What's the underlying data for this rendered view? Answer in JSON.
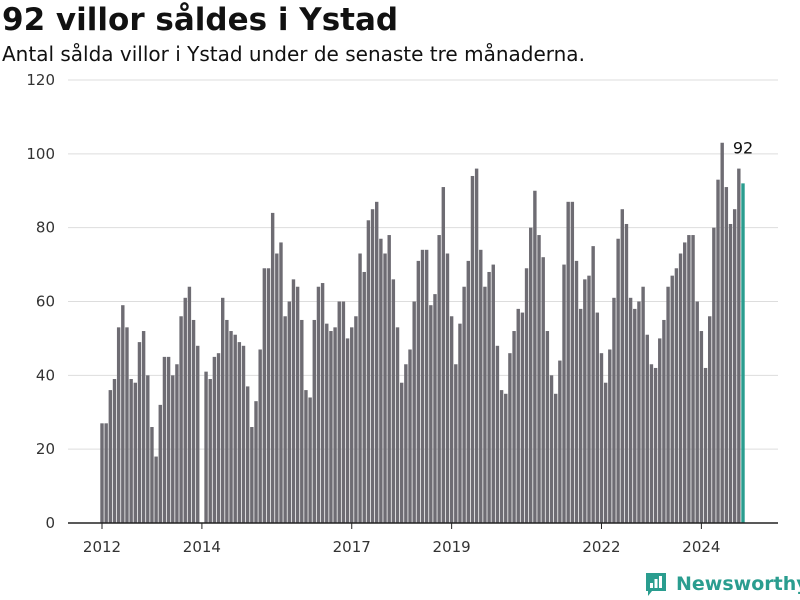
{
  "header": {
    "title": "92 villor såldes i Ystad",
    "subtitle": "Antal sålda villor i Ystad under de senaste tre månaderna."
  },
  "brand": {
    "name": "Newsworthy",
    "logo_icon": "newsworthy-chart-logo-icon"
  },
  "colors": {
    "bar": "#6e6c73",
    "highlight": "#2a9d8f",
    "grid": "#dddddd",
    "axis": "#222222",
    "brand": "#2a9d8f"
  },
  "chart_data": {
    "type": "bar",
    "title": "92 villor såldes i Ystad",
    "subtitle": "Antal sålda villor i Ystad under de senaste tre månaderna.",
    "xlabel": "",
    "ylabel": "",
    "ylim": [
      0,
      120
    ],
    "yticks": [
      0,
      20,
      40,
      60,
      80,
      100,
      120
    ],
    "xlim": [
      2011.85,
      2025.4
    ],
    "xticks": [
      {
        "value": 2012,
        "label": "2012"
      },
      {
        "value": 2014,
        "label": "2014"
      },
      {
        "value": 2017,
        "label": "2017"
      },
      {
        "value": 2019,
        "label": "2019"
      },
      {
        "value": 2022,
        "label": "2022"
      },
      {
        "value": 2024,
        "label": "2024"
      }
    ],
    "grid": true,
    "start": "2012-01",
    "frequency": "monthly",
    "highlight_last": true,
    "last_value_label": "92",
    "values": [
      27,
      27,
      36,
      39,
      53,
      59,
      53,
      39,
      38,
      49,
      52,
      40,
      26,
      18,
      32,
      45,
      45,
      40,
      43,
      56,
      61,
      64,
      55,
      48,
      0,
      41,
      39,
      45,
      46,
      61,
      55,
      52,
      51,
      49,
      48,
      37,
      26,
      33,
      47,
      69,
      69,
      84,
      73,
      76,
      56,
      60,
      66,
      64,
      55,
      36,
      34,
      55,
      64,
      65,
      54,
      52,
      53,
      60,
      60,
      50,
      53,
      56,
      73,
      68,
      82,
      85,
      87,
      77,
      73,
      78,
      66,
      53,
      38,
      43,
      47,
      60,
      71,
      74,
      74,
      59,
      62,
      78,
      91,
      73,
      56,
      43,
      54,
      64,
      71,
      94,
      96,
      74,
      64,
      68,
      70,
      48,
      36,
      35,
      46,
      52,
      58,
      57,
      69,
      80,
      90,
      78,
      72,
      52,
      40,
      35,
      44,
      70,
      87,
      87,
      71,
      58,
      66,
      67,
      75,
      57,
      46,
      38,
      47,
      61,
      77,
      85,
      81,
      61,
      58,
      60,
      64,
      51,
      43,
      42,
      50,
      55,
      64,
      67,
      69,
      73,
      76,
      78,
      78,
      60,
      52,
      42,
      56,
      80,
      93,
      103,
      91,
      81,
      85,
      96,
      92
    ]
  }
}
